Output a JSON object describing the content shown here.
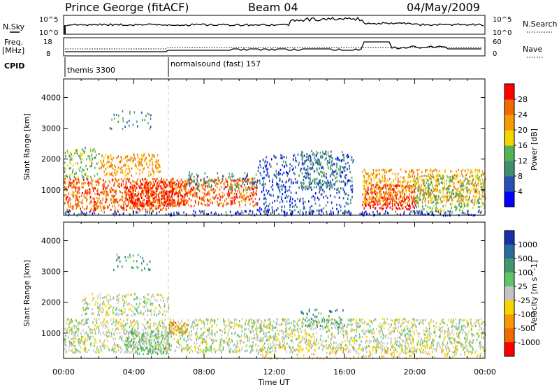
{
  "header": {
    "station": "Prince George (fitACF)",
    "beam": "Beam 04",
    "date": "04/May/2009"
  },
  "top_panels": {
    "nsky_label": "N.Sky",
    "nsky_ticks": [
      "10^5",
      "10^0"
    ],
    "nsearch_label": "N.Search",
    "nsearch_ticks": [
      "10^5",
      "10^0"
    ],
    "freq_label_1": "Freq.",
    "freq_label_2": "[MHz]",
    "freq_ticks": [
      "18",
      "8"
    ],
    "nave_label": "Nave",
    "nave_ticks": [
      "60",
      "0"
    ],
    "cpid_label": "CPID",
    "cpid_segments": [
      {
        "label": "themis 3300",
        "start_hour": 0
      },
      {
        "label": "normalsound (fast) 157",
        "start_hour": 6
      }
    ]
  },
  "chart_data": [
    {
      "type": "heatmap",
      "title": "",
      "xlabel": "Time UT",
      "ylabel": "Slant Range [km]",
      "x_ticks": [
        "00:00",
        "04:00",
        "08:00",
        "12:00",
        "16:00",
        "20:00",
        "00:00"
      ],
      "x_range_hours": [
        0,
        24
      ],
      "y_ticks": [
        "1000",
        "2000",
        "3000",
        "4000"
      ],
      "y_range_km": [
        180,
        4600
      ],
      "colorbar_label": "Power [dB]",
      "colorbar_ticks": [
        "4",
        "8",
        "12",
        "16",
        "20",
        "24",
        "28"
      ],
      "colors": [
        "#0000ff",
        "#2a4fb5",
        "#3f8f6e",
        "#54b354",
        "#f5d400",
        "#f59a00",
        "#f06a00",
        "#ff0000"
      ],
      "scatter_regions": [
        {
          "t0": 0.0,
          "t1": 6.0,
          "r0": 350,
          "r1": 1400,
          "level": 6,
          "density": 0.95
        },
        {
          "t0": 3.5,
          "t1": 7.0,
          "r0": 500,
          "r1": 1300,
          "level": 7,
          "density": 0.95
        },
        {
          "t0": 0.0,
          "t1": 2.0,
          "r0": 1400,
          "r1": 2400,
          "level": 3,
          "density": 0.5
        },
        {
          "t0": 2.0,
          "t1": 5.5,
          "r0": 1500,
          "r1": 2200,
          "level": 5,
          "density": 0.7
        },
        {
          "t0": 6.0,
          "t1": 11.0,
          "r0": 500,
          "r1": 1400,
          "level": 6,
          "density": 0.85
        },
        {
          "t0": 7.0,
          "t1": 11.0,
          "r0": 1000,
          "r1": 1600,
          "level": 2,
          "density": 0.4
        },
        {
          "t0": 11.0,
          "t1": 16.5,
          "r0": 250,
          "r1": 2200,
          "level": 1,
          "density": 0.4
        },
        {
          "t0": 13.5,
          "t1": 16.0,
          "r0": 1000,
          "r1": 2300,
          "level": 2,
          "density": 0.5
        },
        {
          "t0": 17.0,
          "t1": 20.0,
          "r0": 400,
          "r1": 1200,
          "level": 7,
          "density": 0.9
        },
        {
          "t0": 17.0,
          "t1": 24.0,
          "r0": 600,
          "r1": 1700,
          "level": 5,
          "density": 0.7
        },
        {
          "t0": 20.0,
          "t1": 24.0,
          "r0": 300,
          "r1": 1500,
          "level": 3,
          "density": 0.6
        },
        {
          "t0": 2.5,
          "t1": 5.0,
          "r0": 3000,
          "r1": 3600,
          "level": 2,
          "density": 0.2
        },
        {
          "t0": 0.0,
          "t1": 24.0,
          "r0": 200,
          "r1": 350,
          "level": 1,
          "density": 0.55
        }
      ]
    },
    {
      "type": "heatmap",
      "title": "",
      "xlabel": "Time UT",
      "ylabel": "Slant Range [km]",
      "x_ticks": [
        "00:00",
        "04:00",
        "08:00",
        "12:00",
        "16:00",
        "20:00",
        "00:00"
      ],
      "x_range_hours": [
        0,
        24
      ],
      "y_ticks": [
        "1000",
        "2000",
        "3000",
        "4000"
      ],
      "y_range_km": [
        180,
        4600
      ],
      "colorbar_label": "Velocity [m s^-1]",
      "colorbar_ticks": [
        "1000",
        "500",
        "100",
        "25",
        "-25",
        "-100",
        "-500",
        "-1000"
      ],
      "colors": [
        "#1a2ea8",
        "#2a6aa0",
        "#3f9a6a",
        "#5ec46a",
        "#c4c4c4",
        "#f5d400",
        "#f59a00",
        "#f06a00",
        "#ff0000"
      ],
      "scatter_regions": [
        {
          "t0": 0.0,
          "t1": 24.0,
          "r0": 400,
          "r1": 1500,
          "level": 4,
          "density": 0.75
        },
        {
          "t0": 3.5,
          "t1": 6.0,
          "r0": 350,
          "r1": 1100,
          "level": 3,
          "density": 0.95
        },
        {
          "t0": 6.0,
          "t1": 7.0,
          "r0": 1000,
          "r1": 1400,
          "level": 6,
          "density": 0.95
        },
        {
          "t0": 1.0,
          "t1": 6.0,
          "r0": 1600,
          "r1": 2300,
          "level": 4,
          "density": 0.6
        },
        {
          "t0": 13.5,
          "t1": 16.0,
          "r0": 1200,
          "r1": 1800,
          "level": 2,
          "density": 0.4
        },
        {
          "t0": 11.0,
          "t1": 24.0,
          "r0": 200,
          "r1": 600,
          "level": 5,
          "density": 0.3
        },
        {
          "t0": 2.5,
          "t1": 5.0,
          "r0": 3000,
          "r1": 3600,
          "level": 2,
          "density": 0.2
        }
      ]
    }
  ]
}
